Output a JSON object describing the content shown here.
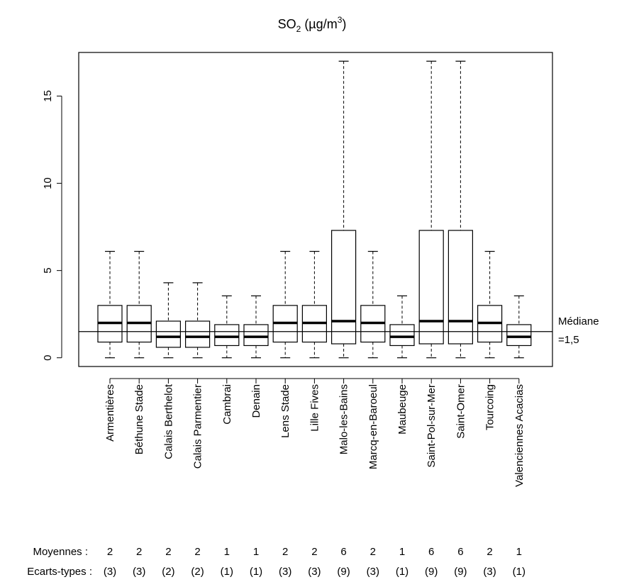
{
  "chart_data": {
    "type": "box",
    "title": "SO",
    "title_sub": "2",
    "title_unit_pre": " (µg/m",
    "title_unit_sup": "3",
    "title_unit_post": ")",
    "ylim": [
      -0.5,
      17.5
    ],
    "yticks": [
      0,
      5,
      10,
      15
    ],
    "ytick_labels": [
      "0",
      "5",
      "10",
      "15"
    ],
    "median_line": {
      "value": 1.5,
      "label_line1": "Médiane",
      "label_line2": "=1,5"
    },
    "categories": [
      "Armentières",
      "Béthune Stade",
      "Calais Berthelot",
      "Calais Parmentier",
      "Cambrai",
      "Denain",
      "Lens Stade",
      "Lille Fives",
      "Malo-les-Bains",
      "Marcq-en-Baroeul",
      "Maubeuge",
      "Saint-Pol-sur-Mer",
      "Saint-Omer",
      "Tourcoing",
      "Valenciennes Acacias"
    ],
    "boxes": [
      {
        "min": 0,
        "q1": 0.9,
        "median": 2.0,
        "q3": 3.0,
        "max": 6.1
      },
      {
        "min": 0,
        "q1": 0.9,
        "median": 2.0,
        "q3": 3.0,
        "max": 6.1
      },
      {
        "min": 0,
        "q1": 0.6,
        "median": 1.2,
        "q3": 2.1,
        "max": 4.3
      },
      {
        "min": 0,
        "q1": 0.6,
        "median": 1.2,
        "q3": 2.1,
        "max": 4.3
      },
      {
        "min": 0,
        "q1": 0.7,
        "median": 1.2,
        "q3": 1.9,
        "max": 3.55
      },
      {
        "min": 0,
        "q1": 0.7,
        "median": 1.2,
        "q3": 1.9,
        "max": 3.55
      },
      {
        "min": 0,
        "q1": 0.9,
        "median": 2.0,
        "q3": 3.0,
        "max": 6.1
      },
      {
        "min": 0,
        "q1": 0.9,
        "median": 2.0,
        "q3": 3.0,
        "max": 6.1
      },
      {
        "min": 0,
        "q1": 0.8,
        "median": 2.1,
        "q3": 7.3,
        "max": 17.0
      },
      {
        "min": 0,
        "q1": 0.9,
        "median": 2.0,
        "q3": 3.0,
        "max": 6.1
      },
      {
        "min": 0,
        "q1": 0.7,
        "median": 1.2,
        "q3": 1.9,
        "max": 3.55
      },
      {
        "min": 0,
        "q1": 0.8,
        "median": 2.1,
        "q3": 7.3,
        "max": 17.0
      },
      {
        "min": 0,
        "q1": 0.8,
        "median": 2.1,
        "q3": 7.3,
        "max": 17.0
      },
      {
        "min": 0,
        "q1": 0.9,
        "median": 2.0,
        "q3": 3.0,
        "max": 6.1
      },
      {
        "min": 0,
        "q1": 0.7,
        "median": 1.2,
        "q3": 1.9,
        "max": 3.55
      }
    ],
    "means_label": "Moyennes :",
    "means": [
      "2",
      "2",
      "2",
      "2",
      "1",
      "1",
      "2",
      "2",
      "6",
      "2",
      "1",
      "6",
      "6",
      "2",
      "1"
    ],
    "sd_label": "Ecarts-types :",
    "sds": [
      "(3)",
      "(3)",
      "(2)",
      "(2)",
      "(1)",
      "(1)",
      "(3)",
      "(3)",
      "(9)",
      "(3)",
      "(1)",
      "(9)",
      "(9)",
      "(3)",
      "(1)"
    ]
  }
}
